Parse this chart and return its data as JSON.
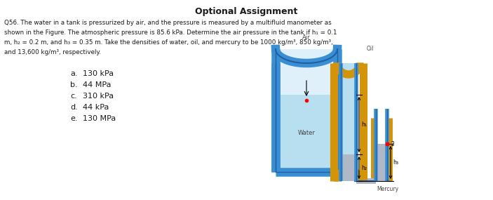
{
  "title": "Optional Assignment",
  "bg_color": "#ffffff",
  "text_color": "#1a1a1a",
  "title_color": "#1a1a1a",
  "water_color": "#b8dff0",
  "wall_blue": "#3a8fd4",
  "wall_blue_dark": "#2060a0",
  "oil_color": "#d4940a",
  "mercury_color": "#b0b8c8",
  "air_label": "Air",
  "water_label": "Water",
  "mercury_label": "Mercury",
  "oil_label": "Oil",
  "q_lines": [
    "Q56. The water in a tank is pressurized by air, and the pressure is measured by a multifluid manometer as",
    "shown in the Figure. The atmospheric pressure is 85.6 kPa. Determine the air pressure in the tank if h₁ = 0.1",
    "m, h₂ = 0.2 m, and h₃ = 0.35 m. Take the densities of water, oil, and mercury to be 1000 kg/m³, 850 kg/m³,",
    "and 13,600 kg/m³, respectively."
  ],
  "choices": [
    [
      "a.",
      "130 kPa"
    ],
    [
      "b.",
      "44 MPa"
    ],
    [
      "c.",
      "310 kPa"
    ],
    [
      "d.",
      "44 kPa"
    ],
    [
      "e.",
      "130 MPa"
    ]
  ]
}
